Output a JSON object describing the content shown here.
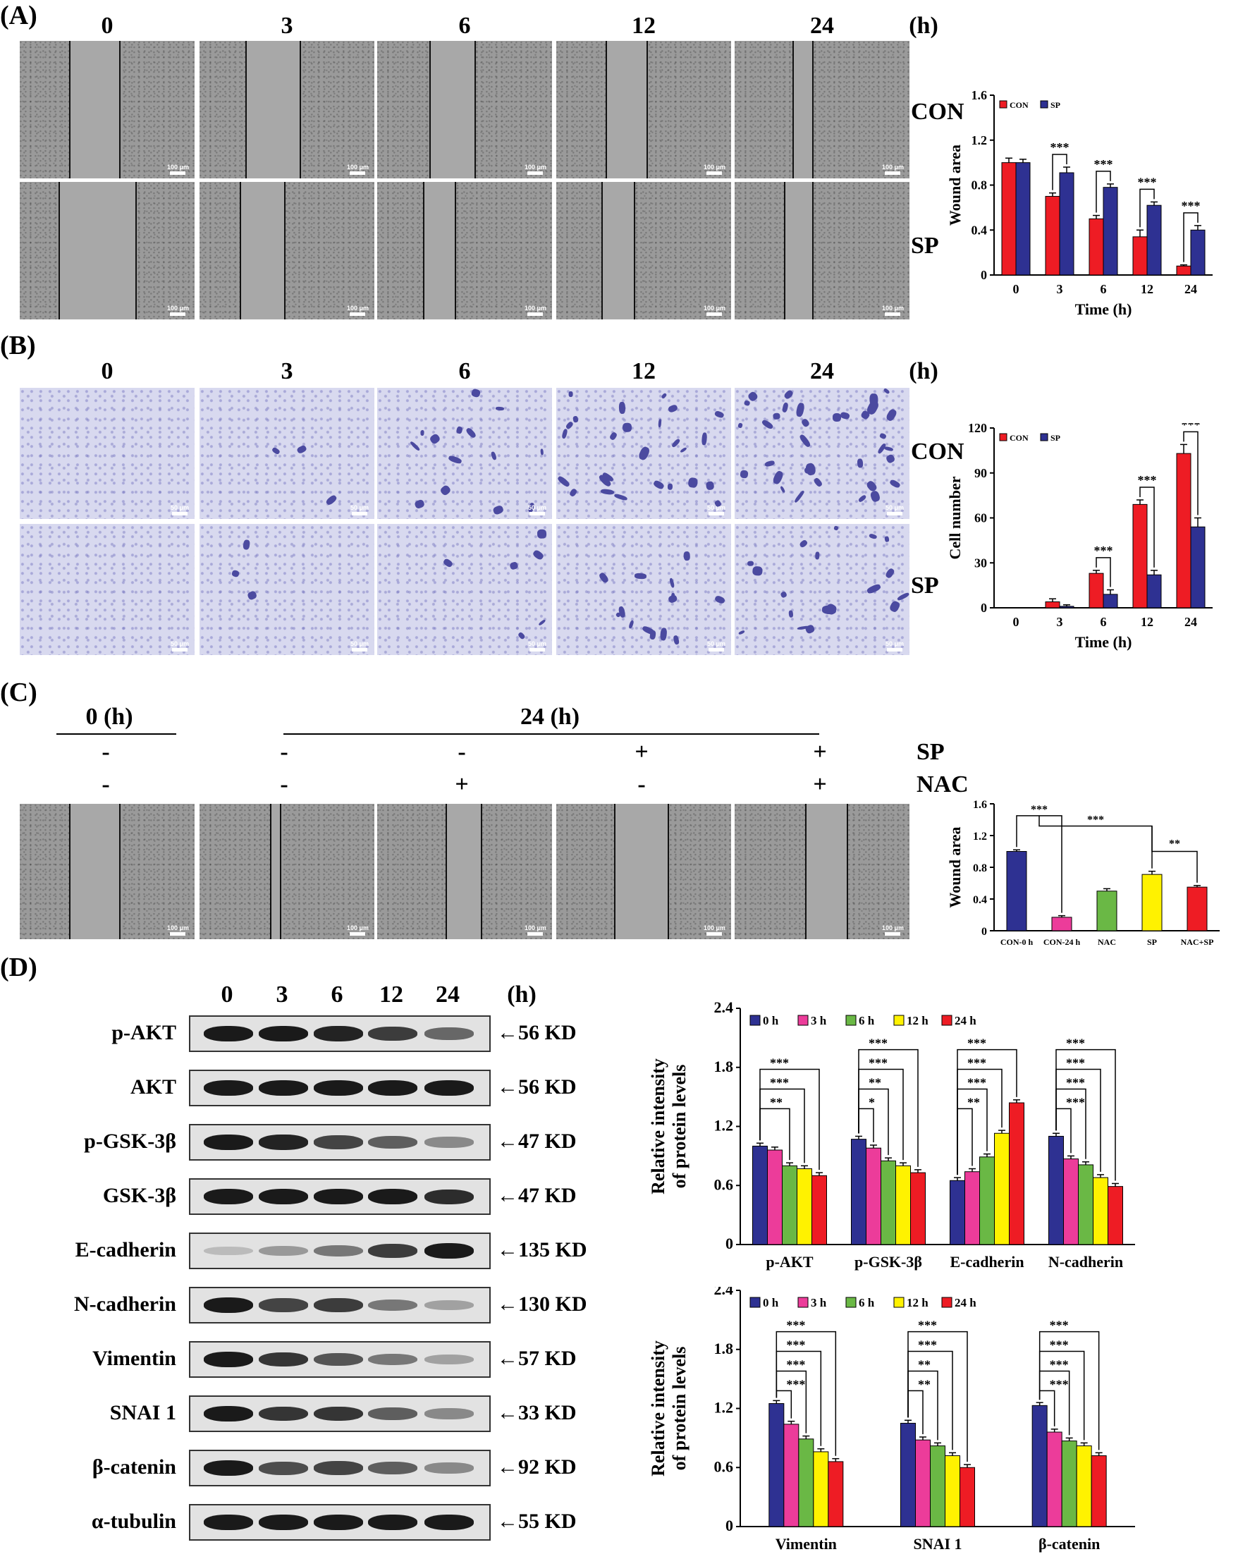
{
  "panel_labels": [
    "(A)",
    "(B)",
    "(C)",
    "(D)"
  ],
  "panelA": {
    "time_labels": [
      "0",
      "3",
      "6",
      "12",
      "24"
    ],
    "unit": "(h)",
    "rows": [
      "CON",
      "SP"
    ],
    "scale_label": "100 μm"
  },
  "panelB": {
    "time_labels": [
      "0",
      "3",
      "6",
      "12",
      "24"
    ],
    "unit": "(h)",
    "rows": [
      "CON",
      "SP"
    ],
    "scale_label": "50 μm"
  },
  "panelC": {
    "header_0": "0 (h)",
    "header_24": "24 (h)",
    "row_labels": [
      "SP",
      "NAC"
    ],
    "sp_signs": [
      "-",
      "-",
      "-",
      "+",
      "+"
    ],
    "nac_signs": [
      "-",
      "-",
      "+",
      "-",
      "+"
    ],
    "scale_label": "100 μm"
  },
  "panelD": {
    "time_labels": [
      "0",
      "3",
      "6",
      "12",
      "24"
    ],
    "unit": "(h)",
    "blots": [
      {
        "name": "p-AKT",
        "kd": "←56 KD"
      },
      {
        "name": "AKT",
        "kd": "←56 KD"
      },
      {
        "name": "p-GSK-3β",
        "kd": "←47 KD"
      },
      {
        "name": "GSK-3β",
        "kd": "←47 KD"
      },
      {
        "name": "E-cadherin",
        "kd": "←135 KD"
      },
      {
        "name": "N-cadherin",
        "kd": "←130 KD"
      },
      {
        "name": "Vimentin",
        "kd": "←57 KD"
      },
      {
        "name": "SNAI 1",
        "kd": "←33 KD"
      },
      {
        "name": "β-catenin",
        "kd": "←92 KD"
      },
      {
        "name": "α-tubulin",
        "kd": "←55 KD"
      }
    ],
    "band_intensity": [
      [
        1.0,
        1.0,
        0.95,
        0.8,
        0.55
      ],
      [
        1.0,
        1.0,
        1.0,
        1.0,
        1.0
      ],
      [
        1.0,
        0.95,
        0.75,
        0.6,
        0.35
      ],
      [
        1.0,
        1.0,
        1.0,
        1.0,
        0.9
      ],
      [
        0.05,
        0.25,
        0.45,
        0.8,
        1.0
      ],
      [
        1.0,
        0.75,
        0.8,
        0.45,
        0.2
      ],
      [
        1.0,
        0.85,
        0.65,
        0.45,
        0.2
      ],
      [
        1.0,
        0.85,
        0.85,
        0.6,
        0.35
      ],
      [
        1.0,
        0.7,
        0.75,
        0.6,
        0.35
      ],
      [
        1.0,
        1.0,
        1.0,
        1.0,
        1.0
      ]
    ]
  },
  "colors": {
    "red": "#ee1c24",
    "blue": "#2e3192",
    "pink": "#ec3c9a",
    "green": "#6ab845",
    "yellow": "#fff200"
  },
  "chart_data": [
    {
      "type": "bar",
      "categories": [
        "0",
        "3",
        "6",
        "12",
        "24"
      ],
      "series": [
        {
          "name": "CON",
          "values": [
            1.0,
            0.7,
            0.5,
            0.34,
            0.08
          ],
          "errors": [
            0.04,
            0.03,
            0.03,
            0.06,
            0.01
          ]
        },
        {
          "name": "SP",
          "values": [
            1.0,
            0.91,
            0.78,
            0.62,
            0.4
          ],
          "errors": [
            0.03,
            0.05,
            0.03,
            0.03,
            0.04
          ]
        }
      ],
      "xlabel": "Time (h)",
      "ylabel": "Wound area",
      "ylim": [
        0,
        1.6
      ],
      "yticks": [
        "0",
        "0.4",
        "0.8",
        "1.2",
        "1.6"
      ],
      "significance": [
        "***",
        "***",
        "***",
        "***"
      ],
      "legend": "top-left"
    },
    {
      "type": "bar",
      "categories": [
        "0",
        "3",
        "6",
        "12",
        "24"
      ],
      "series": [
        {
          "name": "CON",
          "values": [
            0,
            4,
            23,
            69,
            103
          ],
          "errors": [
            0,
            2,
            2,
            3,
            6
          ]
        },
        {
          "name": "SP",
          "values": [
            0,
            1,
            9,
            22,
            54
          ],
          "errors": [
            0,
            1,
            3,
            3,
            6
          ]
        }
      ],
      "xlabel": "Time (h)",
      "ylabel": "Cell number",
      "ylim": [
        0,
        120
      ],
      "yticks": [
        "0",
        "30",
        "60",
        "90",
        "120"
      ],
      "significance": [
        "***",
        "***",
        "***"
      ],
      "legend": "top-left"
    },
    {
      "type": "bar",
      "categories": [
        "CON-0 h",
        "CON-24 h",
        "NAC",
        "SP",
        "NAC+SP"
      ],
      "values": [
        1.0,
        0.17,
        0.5,
        0.71,
        0.55
      ],
      "errors": [
        0.02,
        0.02,
        0.03,
        0.04,
        0.02
      ],
      "ylabel": "Wound area",
      "ylim": [
        0,
        1.6
      ],
      "yticks": [
        "0",
        "0.4",
        "0.8",
        "1.2",
        "1.6"
      ],
      "significance": [
        "***",
        "***",
        "**"
      ]
    },
    {
      "type": "bar",
      "categories": [
        "p-AKT",
        "p-GSK-3β",
        "E-cadherin",
        "N-cadherin"
      ],
      "series": [
        {
          "name": "0 h",
          "values": [
            1.0,
            1.07,
            0.65,
            1.1
          ]
        },
        {
          "name": "3 h",
          "values": [
            0.96,
            0.98,
            0.74,
            0.87
          ]
        },
        {
          "name": "6 h",
          "values": [
            0.8,
            0.85,
            0.89,
            0.81
          ]
        },
        {
          "name": "12 h",
          "values": [
            0.77,
            0.8,
            1.13,
            0.68
          ]
        },
        {
          "name": "24 h",
          "values": [
            0.7,
            0.73,
            1.44,
            0.59
          ]
        }
      ],
      "ylabel": "Relative intensity of protein levels",
      "ylim": [
        0,
        2.4
      ],
      "yticks": [
        "0",
        "0.6",
        "1.2",
        "1.8",
        "2.4"
      ],
      "significance": [
        [
          "**",
          "***",
          "***"
        ],
        [
          "*",
          "**",
          "***",
          "***"
        ],
        [
          "**",
          "***",
          "***",
          "***"
        ],
        [
          "***",
          "***",
          "***",
          "***"
        ]
      ],
      "legend": "top"
    },
    {
      "type": "bar",
      "categories": [
        "Vimentin",
        "SNAI 1",
        "β-catenin"
      ],
      "series": [
        {
          "name": "0 h",
          "values": [
            1.25,
            1.05,
            1.23
          ]
        },
        {
          "name": "3 h",
          "values": [
            1.04,
            0.88,
            0.96
          ]
        },
        {
          "name": "6 h",
          "values": [
            0.89,
            0.82,
            0.87
          ]
        },
        {
          "name": "12 h",
          "values": [
            0.76,
            0.72,
            0.82
          ]
        },
        {
          "name": "24 h",
          "values": [
            0.66,
            0.6,
            0.72
          ]
        }
      ],
      "ylabel": "Relative intensity of protein levels",
      "ylim": [
        0,
        2.4
      ],
      "yticks": [
        "0",
        "0.6",
        "1.2",
        "1.8",
        "2.4"
      ],
      "significance": [
        [
          "***",
          "***",
          "***",
          "***"
        ],
        [
          "**",
          "**",
          "***",
          "***"
        ],
        [
          "***",
          "***",
          "***",
          "***"
        ]
      ],
      "legend": "top"
    }
  ]
}
